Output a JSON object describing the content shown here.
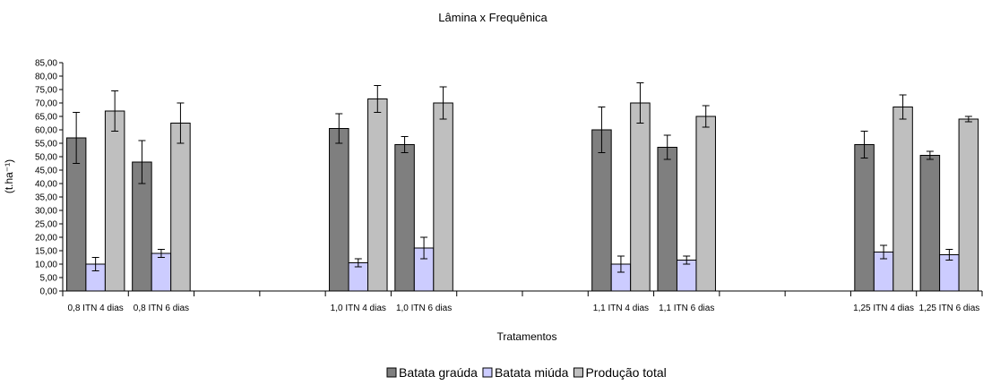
{
  "chart_data": {
    "type": "bar",
    "title": "Lâmina x Frequênica",
    "xlabel": "Tratamentos",
    "ylabel": "(t.ha⁻¹)",
    "ylim": [
      0,
      85
    ],
    "ytick_step": 5,
    "ytick_labels": [
      "0,00",
      "5,00",
      "10,00",
      "15,00",
      "20,00",
      "25,00",
      "30,00",
      "35,00",
      "40,00",
      "45,00",
      "50,00",
      "55,00",
      "60,00",
      "65,00",
      "70,00",
      "75,00",
      "80,00",
      "85,00"
    ],
    "categories": [
      "0,8 ITN  4 dias",
      "0,8 ITN  6 dias",
      "",
      "",
      "1,0 ITN  4 dias",
      "1,0 ITN  6 dias",
      "",
      "",
      "1,1 ITN  4 dias",
      "1,1 ITN  6 dias",
      "",
      "",
      "1,25 ITN 4 dias",
      "1,25 ITN 6 dias"
    ],
    "series": [
      {
        "name": "Batata graúda",
        "color": "#7f7f7f",
        "values": [
          57.0,
          48.0,
          null,
          null,
          60.5,
          54.5,
          null,
          null,
          60.0,
          53.5,
          null,
          null,
          54.5,
          50.5
        ],
        "errors": [
          9.5,
          8.0,
          null,
          null,
          5.5,
          3.0,
          null,
          null,
          8.5,
          4.5,
          null,
          null,
          5.0,
          1.5
        ]
      },
      {
        "name": "Batata miúda",
        "color": "#ccccff",
        "values": [
          10.0,
          14.0,
          null,
          null,
          10.5,
          16.0,
          null,
          null,
          10.0,
          11.5,
          null,
          null,
          14.5,
          13.5
        ],
        "errors": [
          2.5,
          1.5,
          null,
          null,
          1.5,
          4.0,
          null,
          null,
          3.0,
          1.5,
          null,
          null,
          2.5,
          2.0
        ]
      },
      {
        "name": "Produção total",
        "color": "#bfbfbf",
        "values": [
          67.0,
          62.5,
          null,
          null,
          71.5,
          70.0,
          null,
          null,
          70.0,
          65.0,
          null,
          null,
          68.5,
          64.0
        ],
        "errors": [
          7.5,
          7.5,
          null,
          null,
          5.0,
          6.0,
          null,
          null,
          7.5,
          4.0,
          null,
          null,
          4.5,
          1.0
        ]
      }
    ],
    "legend_position": "bottom-center",
    "grid": false
  }
}
